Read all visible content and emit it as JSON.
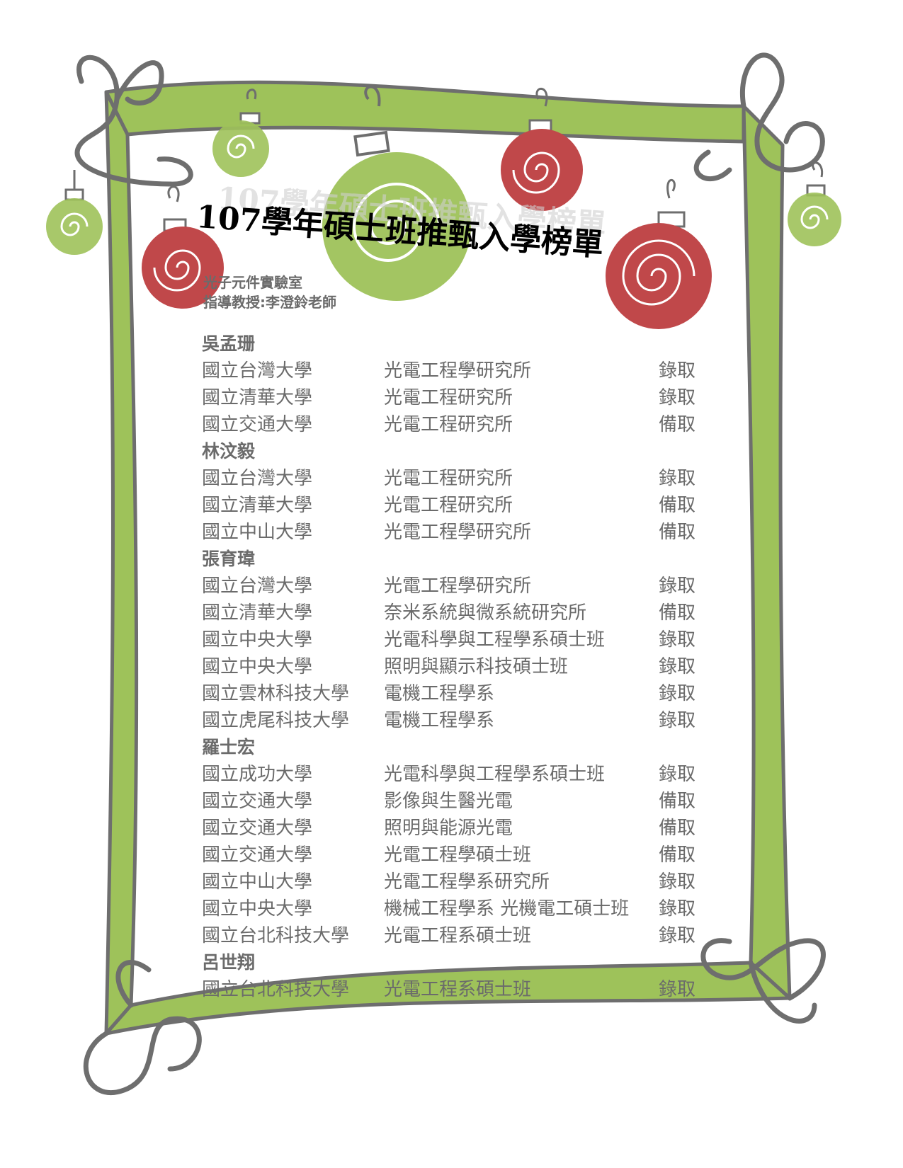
{
  "title": "107學年碩士班推甄入學榜單",
  "lab": {
    "name": "光子元件實驗室",
    "advisor": "指導教授:李澄鈴老師"
  },
  "colors": {
    "frame_green": "#9ec25a",
    "frame_gray": "#6e6e6e",
    "ornament_red": "#c0484a",
    "ornament_green": "#9ec25a",
    "text_gray": "#6b6b6b"
  },
  "students": [
    {
      "name": "吳孟珊",
      "results": [
        {
          "university": "國立台灣大學",
          "department": "光電工程學研究所",
          "status": "錄取"
        },
        {
          "university": "國立清華大學",
          "department": "光電工程研究所",
          "status": "錄取"
        },
        {
          "university": "國立交通大學",
          "department": "光電工程研究所",
          "status": "備取"
        }
      ]
    },
    {
      "name": "林汶毅",
      "results": [
        {
          "university": "國立台灣大學",
          "department": "光電工程研究所",
          "status": "錄取"
        },
        {
          "university": "國立清華大學",
          "department": "光電工程研究所",
          "status": "備取"
        },
        {
          "university": "國立中山大學",
          "department": "光電工程學研究所",
          "status": "備取"
        }
      ]
    },
    {
      "name": "張育瑋",
      "results": [
        {
          "university": "國立台灣大學",
          "department": "光電工程學研究所",
          "status": "錄取"
        },
        {
          "university": "國立清華大學",
          "department": "奈米系統與微系統研究所",
          "status": "備取"
        },
        {
          "university": "國立中央大學",
          "department": "光電科學與工程學系碩士班",
          "status": "錄取"
        },
        {
          "university": "國立中央大學",
          "department": "照明與顯示科技碩士班",
          "status": "錄取"
        },
        {
          "university": "國立雲林科技大學",
          "department": "電機工程學系",
          "status": "錄取"
        },
        {
          "university": "國立虎尾科技大學",
          "department": "電機工程學系",
          "status": "錄取"
        }
      ]
    },
    {
      "name": "羅士宏",
      "results": [
        {
          "university": "國立成功大學",
          "department": "光電科學與工程學系碩士班",
          "status": "錄取"
        },
        {
          "university": "國立交通大學",
          "department": "影像與生醫光電",
          "status": "備取"
        },
        {
          "university": "國立交通大學",
          "department": "照明與能源光電",
          "status": "備取"
        },
        {
          "university": "國立交通大學",
          "department": "光電工程學碩士班",
          "status": "備取"
        },
        {
          "university": "國立中山大學",
          "department": "光電工程學系研究所",
          "status": "錄取"
        },
        {
          "university": "國立中央大學",
          "department": "機械工程學系 光機電工碩士班",
          "status": "錄取"
        },
        {
          "university": "國立台北科技大學",
          "department": "光電工程系碩士班",
          "status": "錄取"
        }
      ]
    },
    {
      "name": "呂世翔",
      "results": [
        {
          "university": "國立台北科技大學",
          "department": "光電工程系碩士班",
          "status": "錄取"
        }
      ]
    }
  ]
}
